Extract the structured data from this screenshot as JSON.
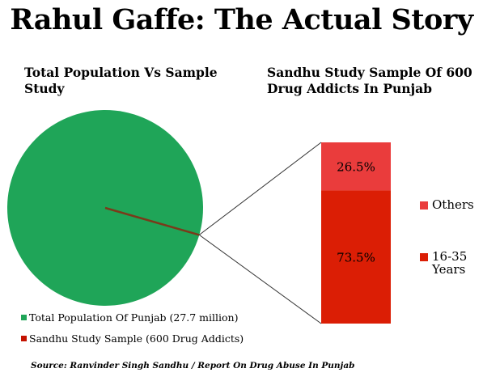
{
  "title": "Rahul Gaffe: The Actual Story",
  "colors": {
    "green": "#1fa558",
    "bar_others": "#ea3c3c",
    "bar_1635": "#db1e05",
    "sample_red": "#c41200",
    "line": "#333333"
  },
  "chart_data": [
    {
      "type": "pie",
      "title": "Total Population Vs Sample Study",
      "slices": [
        {
          "label": "Total Population Of Punjab (27.7 million)",
          "value": 27700000
        },
        {
          "label": "Sandhu Study Sample (600 Drug Addicts)",
          "value": 600
        }
      ],
      "legend": [
        "Total Population Of Punjab (27.7 million)",
        "Sandhu Study Sample (600 Drug Addicts)"
      ],
      "legend_position": "bottom-left"
    },
    {
      "type": "bar",
      "stacked": true,
      "title": "Sandhu Study Sample Of 600 Drug Addicts In Punjab",
      "series": [
        {
          "name": "16-35 Years",
          "value": 73.5,
          "label": "73.5%"
        },
        {
          "name": "Others",
          "value": 26.5,
          "label": "26.5%"
        }
      ],
      "legend": [
        "Others",
        "16-35 Years"
      ],
      "legend_position": "right"
    }
  ],
  "source": "Source: Ranvinder Singh Sandhu / Report On Drug Abuse In Punjab"
}
